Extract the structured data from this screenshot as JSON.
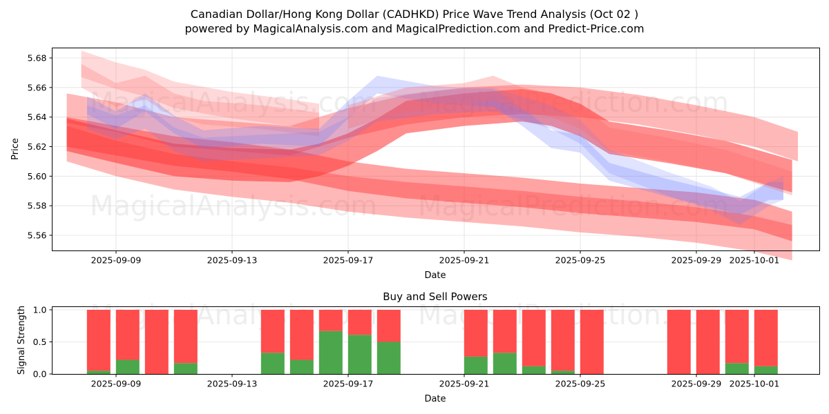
{
  "chart_data": [
    {
      "type": "area",
      "title": "Canadian Dollar/Hong Kong Dollar (CADHKD) Price Wave Trend Analysis (Oct 02 )",
      "subtitle": "powered by MagicalAnalysis.com and MagicalPrediction.com and Predict-Price.com",
      "xlabel": "Date",
      "ylabel": "Price",
      "ylim": [
        5.55,
        5.687
      ],
      "xlim": [
        "2025-09-06.8",
        "2025-10-03.2"
      ],
      "yticks": [
        "5.56",
        "5.58",
        "5.60",
        "5.62",
        "5.64",
        "5.66",
        "5.68"
      ],
      "xticks": [
        "2025-09-09",
        "2025-09-13",
        "2025-09-17",
        "2025-09-21",
        "2025-09-25",
        "2025-09-29",
        "2025-10-01"
      ],
      "grid": true,
      "x_unit": "day-of-september (Oct 1 = 31)",
      "series": [
        {
          "name": "red-band-low-1",
          "color": "#ff3333",
          "opacity": 0.35,
          "halfwidth": 0.012,
          "x": [
            7.3,
            9,
            11,
            13,
            15,
            17,
            19,
            21,
            23,
            25,
            27,
            29,
            31,
            32.3
          ],
          "y": [
            5.622,
            5.612,
            5.603,
            5.598,
            5.594,
            5.588,
            5.584,
            5.581,
            5.578,
            5.574,
            5.571,
            5.567,
            5.561,
            5.555
          ]
        },
        {
          "name": "red-band-low-2",
          "color": "#ff3333",
          "opacity": 0.45,
          "halfwidth": 0.01,
          "x": [
            7.3,
            9,
            11,
            13,
            15,
            17,
            19,
            21,
            23,
            25,
            27,
            29,
            31,
            32.3
          ],
          "y": [
            5.63,
            5.624,
            5.617,
            5.613,
            5.608,
            5.6,
            5.595,
            5.592,
            5.589,
            5.585,
            5.582,
            5.579,
            5.574,
            5.566
          ]
        },
        {
          "name": "red-band-main",
          "color": "#ff3333",
          "opacity": 0.55,
          "halfwidth": 0.011,
          "x": [
            7.3,
            9,
            11,
            13,
            15,
            16,
            17,
            18,
            19,
            21,
            23,
            24,
            25,
            26,
            28,
            30,
            32.3
          ],
          "y": [
            5.628,
            5.62,
            5.611,
            5.608,
            5.607,
            5.611,
            5.618,
            5.628,
            5.64,
            5.645,
            5.648,
            5.645,
            5.638,
            5.626,
            5.62,
            5.613,
            5.6
          ]
        },
        {
          "name": "red-band-upper",
          "color": "#ff3333",
          "opacity": 0.35,
          "halfwidth": 0.01,
          "x": [
            7.3,
            9,
            11,
            13,
            15,
            17,
            19,
            21,
            23,
            25,
            27,
            29,
            31,
            32.5
          ],
          "y": [
            5.646,
            5.64,
            5.63,
            5.627,
            5.624,
            5.636,
            5.645,
            5.65,
            5.652,
            5.65,
            5.645,
            5.638,
            5.63,
            5.62
          ]
        },
        {
          "name": "pink-band-top-1",
          "color": "#ff6666",
          "opacity": 0.25,
          "halfwidth": 0.009,
          "x": [
            7.8,
            9,
            10,
            11,
            13,
            15,
            16
          ],
          "y": [
            5.676,
            5.668,
            5.663,
            5.655,
            5.648,
            5.643,
            5.64
          ]
        },
        {
          "name": "pink-band-top-2",
          "color": "#ff6666",
          "opacity": 0.25,
          "halfwidth": 0.008,
          "x": [
            7.8,
            9,
            10,
            11,
            12,
            14,
            16
          ],
          "y": [
            5.668,
            5.655,
            5.66,
            5.648,
            5.643,
            5.64,
            5.635
          ]
        },
        {
          "name": "blue-band-1",
          "color": "#6677ff",
          "opacity": 0.25,
          "halfwidth": 0.006,
          "x": [
            8,
            9,
            10,
            11,
            12,
            14,
            16,
            17,
            18,
            20,
            22,
            23,
            24,
            25,
            26,
            28,
            29.5,
            30.5,
            31.5,
            32
          ],
          "y": [
            5.648,
            5.638,
            5.65,
            5.635,
            5.625,
            5.628,
            5.626,
            5.645,
            5.662,
            5.655,
            5.653,
            5.64,
            5.625,
            5.622,
            5.603,
            5.592,
            5.585,
            5.58,
            5.59,
            5.59
          ]
        },
        {
          "name": "blue-band-2",
          "color": "#6677ff",
          "opacity": 0.2,
          "halfwidth": 0.008,
          "x": [
            8,
            9,
            10,
            11,
            12,
            14,
            16,
            17,
            18,
            20,
            22,
            23,
            24,
            25,
            26,
            28,
            29.5,
            30.5,
            31.5,
            32
          ],
          "y": [
            5.64,
            5.633,
            5.64,
            5.625,
            5.618,
            5.62,
            5.622,
            5.632,
            5.645,
            5.65,
            5.652,
            5.646,
            5.64,
            5.63,
            5.61,
            5.595,
            5.585,
            5.575,
            5.588,
            5.592
          ]
        },
        {
          "name": "pink-band-mid",
          "color": "#ff6666",
          "opacity": 0.3,
          "halfwidth": 0.008,
          "x": [
            17,
            19,
            21,
            22,
            23,
            24,
            25,
            26,
            28,
            30,
            32.3
          ],
          "y": [
            5.64,
            5.652,
            5.655,
            5.66,
            5.652,
            5.648,
            5.64,
            5.625,
            5.618,
            5.61,
            5.595
          ]
        }
      ]
    },
    {
      "type": "bar",
      "title": "Buy and Sell Powers",
      "xlabel": "Date",
      "ylabel": "Signal Strength",
      "ylim": [
        0,
        1.05
      ],
      "yticks": [
        "0.0",
        "0.5",
        "1.0"
      ],
      "xticks": [
        "2025-09-09",
        "2025-09-13",
        "2025-09-17",
        "2025-09-21",
        "2025-09-25",
        "2025-09-29",
        "2025-10-01"
      ],
      "categories": [
        "2025-09-08",
        "2025-09-09",
        "2025-09-10",
        "2025-09-11",
        "2025-09-14",
        "2025-09-15",
        "2025-09-16",
        "2025-09-17",
        "2025-09-18",
        "2025-09-21",
        "2025-09-22",
        "2025-09-23",
        "2025-09-24",
        "2025-09-25",
        "2025-09-28",
        "2025-09-29",
        "2025-09-30",
        "2025-10-01"
      ],
      "series": [
        {
          "name": "Buy",
          "color": "#4ca64c",
          "values": [
            0.05,
            0.22,
            0.0,
            0.17,
            0.33,
            0.22,
            0.67,
            0.61,
            0.5,
            0.27,
            0.33,
            0.12,
            0.05,
            0.0,
            0.0,
            0.0,
            0.17,
            0.12
          ]
        },
        {
          "name": "Sell",
          "color": "#ff4c4c",
          "values": [
            0.95,
            0.78,
            1.0,
            0.83,
            0.67,
            0.78,
            0.33,
            0.39,
            0.5,
            0.73,
            0.67,
            0.88,
            0.95,
            1.0,
            1.0,
            1.0,
            0.83,
            0.88
          ]
        }
      ],
      "grid": true
    }
  ],
  "watermarks": [
    "MagicalAnalysis.com",
    "MagicalPrediction.com"
  ]
}
